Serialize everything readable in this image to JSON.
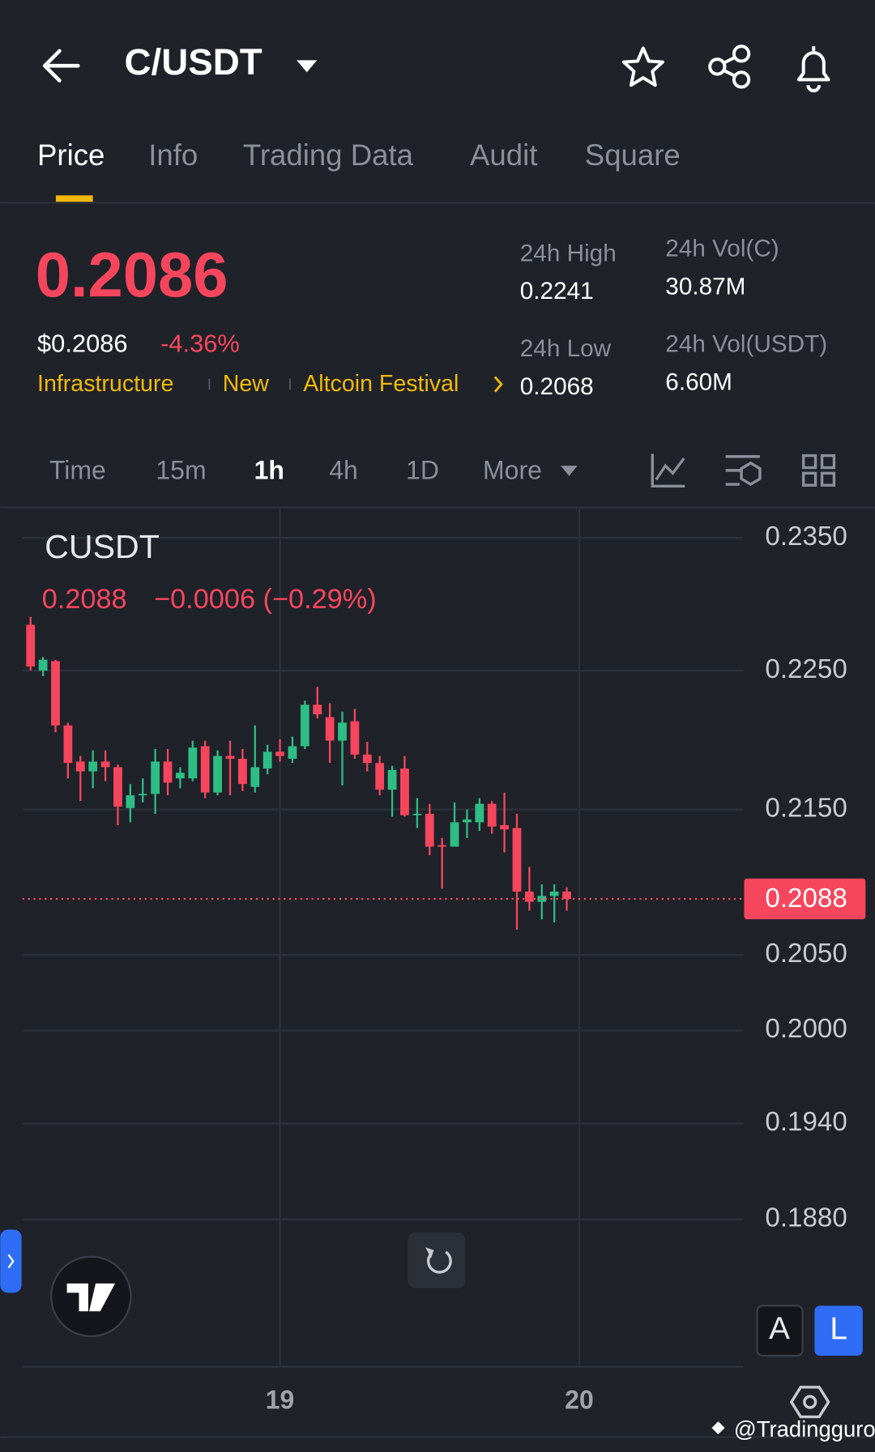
{
  "header": {
    "pair": "C/USDT"
  },
  "tabs": [
    "Price",
    "Info",
    "Trading Data",
    "Audit",
    "Square"
  ],
  "price": {
    "last": "0.2086",
    "usd": "$0.2086",
    "change": "-4.36%"
  },
  "tags": [
    "Infrastructure",
    "New",
    "Altcoin Festival"
  ],
  "stats": [
    {
      "label": "24h High",
      "value": "0.2241"
    },
    {
      "label": "24h Vol(C)",
      "value": "30.87M"
    },
    {
      "label": "24h Low",
      "value": "0.2068"
    },
    {
      "label": "24h Vol(USDT)",
      "value": "6.60M"
    }
  ],
  "intervals": [
    "Time",
    "15m",
    "1h",
    "4h",
    "1D",
    "More"
  ],
  "chart_data": {
    "type": "candlestick",
    "title": "CUSDT",
    "change_label": "−0.0006 (−0.29%)",
    "up_color": "#2ebd85",
    "down_color": "#f6465d",
    "x": [
      4,
      5,
      6,
      7,
      8,
      9,
      10,
      11,
      12,
      13,
      14,
      15,
      16,
      17,
      18,
      19,
      20,
      21,
      22,
      23,
      24,
      25,
      26,
      27,
      28,
      29,
      30,
      31,
      32,
      33,
      34,
      35,
      36,
      37,
      38,
      39,
      40,
      41,
      42,
      43,
      44,
      45,
      46,
      47
    ],
    "open": [
      0.2284,
      0.225,
      0.2257,
      0.221,
      0.2184,
      0.2177,
      0.2184,
      0.218,
      0.2151,
      0.216,
      0.2161,
      0.2184,
      0.2172,
      0.2172,
      0.2195,
      0.2162,
      0.2188,
      0.2186,
      0.2166,
      0.2179,
      0.2191,
      0.2186,
      0.2195,
      0.2225,
      0.2216,
      0.2199,
      0.2213,
      0.2189,
      0.2183,
      0.2164,
      0.2179,
      0.2146,
      0.2147,
      0.2125,
      0.2124,
      0.2141,
      0.2141,
      0.2154,
      0.2139,
      0.2137,
      0.2093,
      0.2086,
      0.209,
      0.2093
    ],
    "high": [
      0.229,
      0.226,
      0.2258,
      0.2212,
      0.2188,
      0.2192,
      0.2192,
      0.2182,
      0.2168,
      0.2172,
      0.2193,
      0.2193,
      0.218,
      0.2199,
      0.2199,
      0.2192,
      0.2199,
      0.2193,
      0.221,
      0.2196,
      0.22,
      0.2202,
      0.2228,
      0.2238,
      0.2226,
      0.222,
      0.2222,
      0.2198,
      0.2188,
      0.2181,
      0.2188,
      0.2158,
      0.2154,
      0.213,
      0.2155,
      0.215,
      0.2158,
      0.2156,
      0.2162,
      0.2147,
      0.211,
      0.2098,
      0.2098,
      0.2096
    ],
    "low": [
      0.225,
      0.2246,
      0.2205,
      0.2172,
      0.2156,
      0.2165,
      0.217,
      0.2139,
      0.2141,
      0.2155,
      0.2147,
      0.216,
      0.2165,
      0.217,
      0.2158,
      0.216,
      0.216,
      0.2163,
      0.2162,
      0.2175,
      0.2184,
      0.2183,
      0.2193,
      0.2215,
      0.2183,
      0.2167,
      0.2186,
      0.2177,
      0.216,
      0.2145,
      0.2145,
      0.2137,
      0.2118,
      0.2095,
      0.2124,
      0.213,
      0.2135,
      0.2133,
      0.212,
      0.2067,
      0.208,
      0.2074,
      0.2072,
      0.208
    ],
    "close": [
      0.2253,
      0.2258,
      0.221,
      0.2183,
      0.2177,
      0.2184,
      0.218,
      0.2152,
      0.216,
      0.2161,
      0.2184,
      0.2169,
      0.2176,
      0.2194,
      0.2162,
      0.2188,
      0.2186,
      0.2168,
      0.218,
      0.2191,
      0.2188,
      0.2195,
      0.2225,
      0.2218,
      0.2199,
      0.2212,
      0.2189,
      0.2183,
      0.2164,
      0.2178,
      0.2146,
      0.2147,
      0.2124,
      0.2124,
      0.2141,
      0.2143,
      0.2154,
      0.2138,
      0.2136,
      0.2093,
      0.2086,
      0.209,
      0.2093,
      0.2088
    ],
    "xlim": [
      3.35,
      61.15
    ],
    "xticks": [
      {
        "value": 24,
        "label": "19"
      },
      {
        "value": 48,
        "label": "20"
      }
    ],
    "ylim": [
      0.1792,
      0.2372
    ],
    "yticks": [
      {
        "value": 0.235,
        "label": "0.2350"
      },
      {
        "value": 0.225,
        "label": "0.2250"
      },
      {
        "value": 0.215,
        "label": "0.2150"
      },
      {
        "value": 0.205,
        "label": "0.2050"
      },
      {
        "value": 0.2,
        "label": "0.2000"
      },
      {
        "value": 0.194,
        "label": "0.1940"
      },
      {
        "value": 0.188,
        "label": "0.1880"
      }
    ],
    "log_scale": true,
    "grid": true
  },
  "buttons": [
    "A",
    "L"
  ],
  "watermark": "@Tradingguro"
}
